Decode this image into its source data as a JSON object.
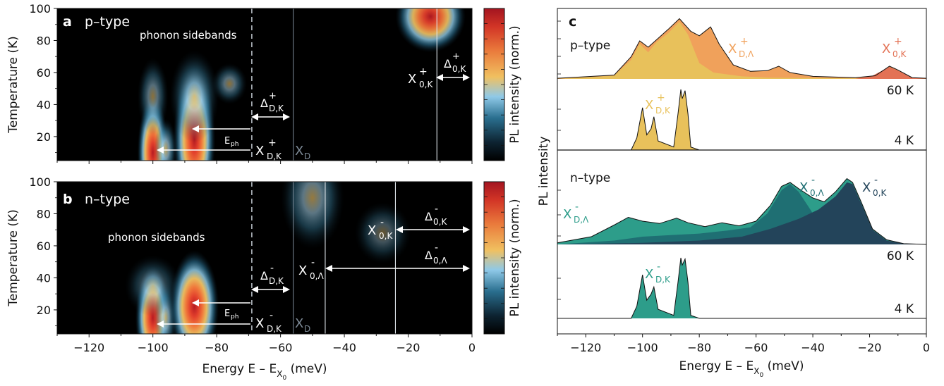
{
  "chart_data": [
    {
      "panel": "a",
      "type": "heatmap",
      "doping": "p–type",
      "xlim": [
        -130,
        0
      ],
      "ylim": [
        5,
        100
      ],
      "ylabel": "Temperature (K)",
      "yticks": [
        20,
        40,
        60,
        80,
        100
      ],
      "colorbar_label": "PL intensity (norm.)",
      "annotations": [
        "phonon sidebands",
        "E",
        "ph",
        "X",
        "D,K",
        "+",
        "X",
        "D",
        "Δ",
        "D,K",
        "+",
        "X",
        "0,K",
        "+",
        "Δ",
        "0,K",
        "+"
      ],
      "blobs": [
        {
          "energy": -100,
          "temperature": 10,
          "sx": 2.2,
          "st": 22,
          "amp": 1.0
        },
        {
          "energy": -96,
          "temperature": 12,
          "sx": 1.6,
          "st": 12,
          "amp": 0.65
        },
        {
          "energy": -87,
          "temperature": 18,
          "sx": 3.0,
          "st": 28,
          "amp": 1.0
        },
        {
          "energy": -87,
          "temperature": 45,
          "sx": 3.5,
          "st": 18,
          "amp": 0.55
        },
        {
          "energy": -100,
          "temperature": 45,
          "sx": 2.2,
          "st": 15,
          "amp": 0.45
        },
        {
          "energy": -76,
          "temperature": 53,
          "sx": 2.5,
          "st": 8,
          "amp": 0.45
        },
        {
          "energy": -13,
          "temperature": 95,
          "sx": 5,
          "st": 14,
          "amp": 0.8
        }
      ],
      "lines": {
        "dashed": -69,
        "XD": -56,
        "X0K": -11
      }
    },
    {
      "panel": "b",
      "type": "heatmap",
      "doping": "n–type",
      "xlim": [
        -130,
        0
      ],
      "ylim": [
        5,
        100
      ],
      "xlabel": "Energy E – E",
      "xlabel_sub": "X",
      "xlabel_subsub": "0",
      "xlabel_unit": " (meV)",
      "ylabel": "Temperature (K)",
      "xticks": [
        -120,
        -100,
        -80,
        -60,
        -40,
        -20,
        0
      ],
      "yticks": [
        20,
        40,
        60,
        80,
        100
      ],
      "colorbar_label": "PL intensity (norm.)",
      "annotations": [
        "phonon sidebands",
        "E",
        "ph",
        "X",
        "D,K",
        "-",
        "X",
        "D",
        "Δ",
        "D,K",
        "-",
        "X",
        "0,Λ",
        "-",
        "X",
        "0,K",
        "-",
        "Δ",
        "0,K",
        "-",
        "Δ",
        "0,Λ",
        "-"
      ],
      "blobs": [
        {
          "energy": -100,
          "temperature": 15,
          "sx": 2.5,
          "st": 20,
          "amp": 0.9
        },
        {
          "energy": -96,
          "temperature": 15,
          "sx": 1.6,
          "st": 14,
          "amp": 0.6
        },
        {
          "energy": -87,
          "temperature": 22,
          "sx": 3.5,
          "st": 22,
          "amp": 1.0
        },
        {
          "energy": -100,
          "temperature": 35,
          "sx": 4,
          "st": 12,
          "amp": 0.35
        },
        {
          "energy": -50,
          "temperature": 90,
          "sx": 4.5,
          "st": 20,
          "amp": 0.5
        },
        {
          "energy": -28,
          "temperature": 68,
          "sx": 4,
          "st": 12,
          "amp": 0.3
        }
      ],
      "lines": {
        "dashed": -69,
        "XD": -56,
        "X0L": -46,
        "X0K": -24
      }
    },
    {
      "panel": "c",
      "type": "area",
      "xlim": [
        -130,
        0
      ],
      "xlabel": "Energy E – E",
      "xlabel_sub": "X",
      "xlabel_subsub": "0",
      "xlabel_unit": " (meV)",
      "ylabel": "PL intensity",
      "xticks": [
        -120,
        -100,
        -80,
        -60,
        -40,
        -20,
        0
      ],
      "groups": [
        {
          "doping": "p–type",
          "temperature_label": "60 K",
          "peaks_label": [
            "X",
            "D,Λ",
            "+",
            "X",
            "0,K",
            "+"
          ],
          "colors": [
            "#e8c15b",
            "#f0a15b",
            "#e37255"
          ]
        },
        {
          "temperature_label": "4 K",
          "peaks_label": [
            "X",
            "D,K",
            "+"
          ],
          "colors": [
            "#e8c15b"
          ]
        },
        {
          "doping": "n–type",
          "temperature_label": "60 K",
          "peaks_label": [
            "X",
            "D,Λ",
            "-",
            "X",
            "0,Λ",
            "-",
            "X",
            "0,K",
            "-"
          ],
          "colors": [
            "#2d9d8a",
            "#1f6f73",
            "#23445a"
          ]
        },
        {
          "temperature_label": "4 K",
          "peaks_label": [
            "X",
            "D,K",
            "-"
          ],
          "colors": [
            "#2d9d8a"
          ]
        }
      ],
      "spectra": {
        "p60_total": [
          [
            -130,
            0.01
          ],
          [
            -110,
            0.06
          ],
          [
            -104,
            0.35
          ],
          [
            -101,
            0.6
          ],
          [
            -98,
            0.5
          ],
          [
            -95,
            0.62
          ],
          [
            -91,
            0.78
          ],
          [
            -87,
            0.95
          ],
          [
            -83,
            0.75
          ],
          [
            -80,
            0.68
          ],
          [
            -76,
            0.82
          ],
          [
            -73,
            0.55
          ],
          [
            -68,
            0.22
          ],
          [
            -62,
            0.12
          ],
          [
            -56,
            0.13
          ],
          [
            -52,
            0.2
          ],
          [
            -48,
            0.1
          ],
          [
            -40,
            0.04
          ],
          [
            -25,
            0.02
          ],
          [
            -18,
            0.05
          ],
          [
            -13,
            0.2
          ],
          [
            -10,
            0.14
          ],
          [
            -5,
            0.02
          ],
          [
            0,
            0.01
          ]
        ],
        "p60_dk": [
          [
            -130,
            0.0
          ],
          [
            -110,
            0.05
          ],
          [
            -104,
            0.3
          ],
          [
            -101,
            0.55
          ],
          [
            -98,
            0.42
          ],
          [
            -95,
            0.58
          ],
          [
            -91,
            0.72
          ],
          [
            -87,
            0.9
          ],
          [
            -84,
            0.7
          ],
          [
            -80,
            0.25
          ],
          [
            -75,
            0.1
          ],
          [
            -65,
            0.04
          ],
          [
            -55,
            0.02
          ],
          [
            0,
            0.0
          ]
        ],
        "p60_dl": [
          [
            -130,
            0.0
          ],
          [
            -105,
            0.05
          ],
          [
            -96,
            0.22
          ],
          [
            -92,
            0.25
          ],
          [
            -88,
            0.22
          ],
          [
            -84,
            0.5
          ],
          [
            -80,
            0.62
          ],
          [
            -76,
            0.78
          ],
          [
            -73,
            0.52
          ],
          [
            -68,
            0.2
          ],
          [
            -62,
            0.1
          ],
          [
            -56,
            0.12
          ],
          [
            -52,
            0.18
          ],
          [
            -48,
            0.08
          ],
          [
            -40,
            0.02
          ],
          [
            0,
            0.0
          ]
        ],
        "p60_0k": [
          [
            -130,
            0.0
          ],
          [
            -25,
            0.0
          ],
          [
            -19,
            0.05
          ],
          [
            -13,
            0.19
          ],
          [
            -10,
            0.13
          ],
          [
            -5,
            0.02
          ],
          [
            0,
            0.0
          ]
        ],
        "p4": [
          [
            -130,
            0.0
          ],
          [
            -104,
            0.0
          ],
          [
            -102,
            0.2
          ],
          [
            -100,
            0.7
          ],
          [
            -98.5,
            0.25
          ],
          [
            -97,
            0.35
          ],
          [
            -96,
            0.55
          ],
          [
            -94.5,
            0.15
          ],
          [
            -89,
            0.05
          ],
          [
            -87.5,
            0.6
          ],
          [
            -86.5,
            1.0
          ],
          [
            -86,
            0.85
          ],
          [
            -85,
            0.98
          ],
          [
            -84,
            0.6
          ],
          [
            -83,
            0.05
          ],
          [
            -80,
            0.0
          ],
          [
            0,
            0.0
          ]
        ],
        "n60_total": [
          [
            -130,
            0.02
          ],
          [
            -118,
            0.1
          ],
          [
            -110,
            0.25
          ],
          [
            -105,
            0.35
          ],
          [
            -100,
            0.3
          ],
          [
            -94,
            0.27
          ],
          [
            -88,
            0.34
          ],
          [
            -84,
            0.28
          ],
          [
            -78,
            0.23
          ],
          [
            -72,
            0.28
          ],
          [
            -66,
            0.24
          ],
          [
            -60,
            0.3
          ],
          [
            -55,
            0.5
          ],
          [
            -51,
            0.75
          ],
          [
            -48,
            0.8
          ],
          [
            -45,
            0.72
          ],
          [
            -40,
            0.6
          ],
          [
            -36,
            0.55
          ],
          [
            -32,
            0.68
          ],
          [
            -28,
            0.85
          ],
          [
            -26,
            0.8
          ],
          [
            -23,
            0.55
          ],
          [
            -19,
            0.2
          ],
          [
            -14,
            0.06
          ],
          [
            -8,
            0.01
          ],
          [
            0,
            0.0
          ]
        ],
        "n60_dl": [
          [
            -130,
            0.02
          ],
          [
            -118,
            0.1
          ],
          [
            -110,
            0.2
          ],
          [
            -105,
            0.27
          ],
          [
            -100,
            0.22
          ],
          [
            -94,
            0.18
          ],
          [
            -88,
            0.23
          ],
          [
            -82,
            0.16
          ],
          [
            -75,
            0.12
          ],
          [
            -70,
            0.13
          ],
          [
            -64,
            0.1
          ],
          [
            -55,
            0.06
          ],
          [
            -45,
            0.03
          ],
          [
            -30,
            0.01
          ],
          [
            0,
            0.0
          ]
        ],
        "n60_0l": [
          [
            -130,
            0.0
          ],
          [
            -110,
            0.05
          ],
          [
            -100,
            0.1
          ],
          [
            -90,
            0.12
          ],
          [
            -80,
            0.14
          ],
          [
            -70,
            0.18
          ],
          [
            -62,
            0.22
          ],
          [
            -56,
            0.4
          ],
          [
            -51,
            0.7
          ],
          [
            -48,
            0.78
          ],
          [
            -45,
            0.68
          ],
          [
            -40,
            0.4
          ],
          [
            -35,
            0.2
          ],
          [
            -28,
            0.08
          ],
          [
            -20,
            0.02
          ],
          [
            0,
            0.0
          ]
        ],
        "n60_0k": [
          [
            -130,
            0.0
          ],
          [
            -100,
            0.02
          ],
          [
            -80,
            0.05
          ],
          [
            -65,
            0.1
          ],
          [
            -55,
            0.2
          ],
          [
            -45,
            0.33
          ],
          [
            -38,
            0.45
          ],
          [
            -32,
            0.62
          ],
          [
            -28,
            0.8
          ],
          [
            -26,
            0.78
          ],
          [
            -23,
            0.53
          ],
          [
            -19,
            0.19
          ],
          [
            -14,
            0.05
          ],
          [
            -8,
            0.01
          ],
          [
            0,
            0.0
          ]
        ],
        "n4": [
          [
            -130,
            0.0
          ],
          [
            -104,
            0.0
          ],
          [
            -102,
            0.2
          ],
          [
            -100,
            0.72
          ],
          [
            -98.5,
            0.3
          ],
          [
            -97,
            0.4
          ],
          [
            -96,
            0.52
          ],
          [
            -94.5,
            0.15
          ],
          [
            -89,
            0.05
          ],
          [
            -87.5,
            0.6
          ],
          [
            -86.5,
            1.0
          ],
          [
            -86,
            0.88
          ],
          [
            -85,
            0.98
          ],
          [
            -84,
            0.6
          ],
          [
            -83,
            0.05
          ],
          [
            -80,
            0.0
          ],
          [
            0,
            0.0
          ]
        ]
      }
    }
  ]
}
